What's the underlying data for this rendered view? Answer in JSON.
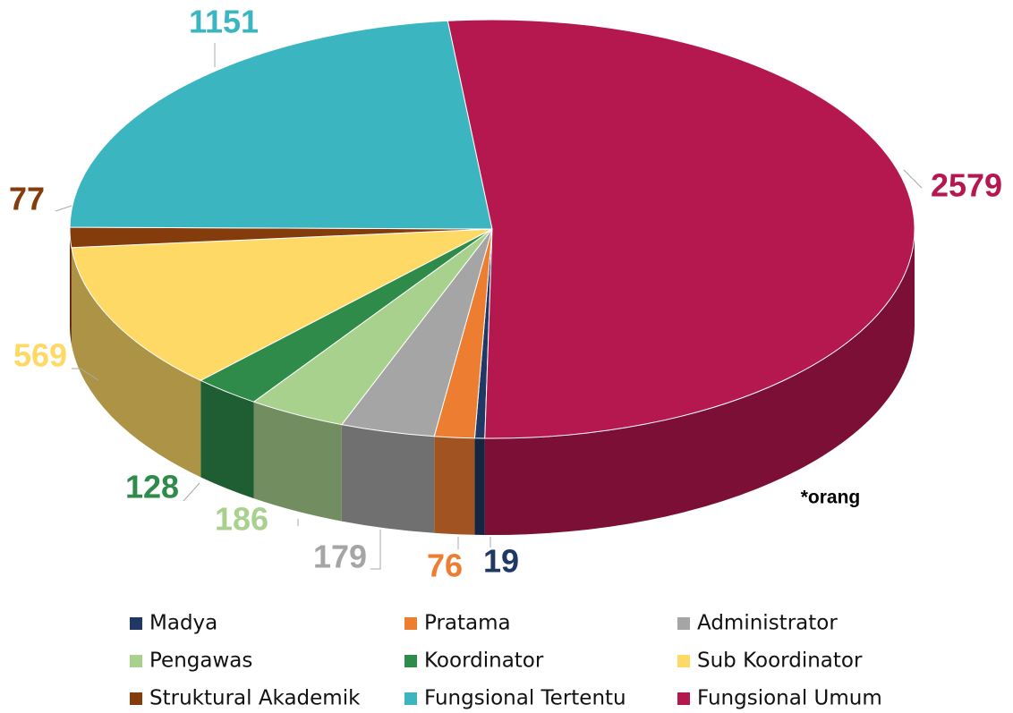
{
  "chart_data": {
    "type": "pie3d",
    "categories": [
      "Madya",
      "Pratama",
      "Administrator",
      "Pengawas",
      "Koordinator",
      "Sub Koordinator",
      "Struktural Akademik",
      "Fungsional Tertentu",
      "Fungsional Umum"
    ],
    "values": [
      19,
      76,
      179,
      186,
      128,
      569,
      77,
      1151,
      2579
    ],
    "colors": [
      "#1f3864",
      "#ed7d31",
      "#a5a5a5",
      "#a9d18e",
      "#2e8b4a",
      "#ffd966",
      "#843c0c",
      "#3bb6c1",
      "#b5174f"
    ],
    "annotation": "*orang",
    "legend": "bottom"
  }
}
